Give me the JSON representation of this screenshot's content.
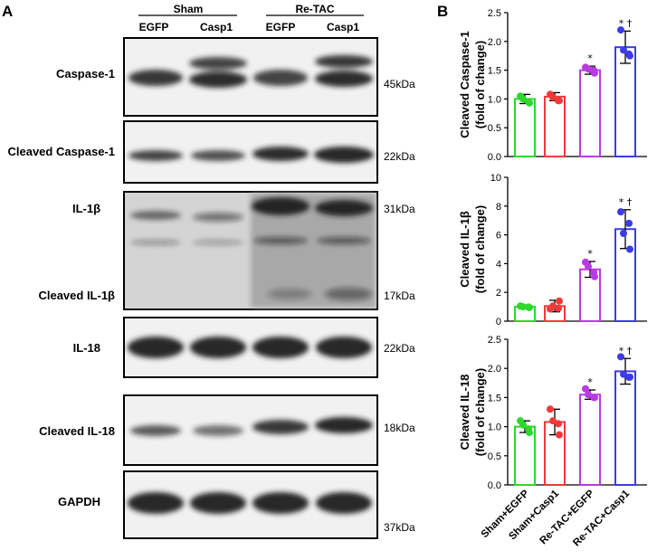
{
  "panel_a": {
    "letter": "A",
    "groups": [
      {
        "label": "Sham",
        "lanes": [
          "EGFP",
          "Casp1"
        ]
      },
      {
        "label": "Re-TAC",
        "lanes": [
          "EGFP",
          "Casp1"
        ]
      }
    ],
    "blots": [
      {
        "label": "Caspase-1",
        "sizes": [
          "45kDa"
        ]
      },
      {
        "label": "Cleaved Caspase-1",
        "sizes": [
          "22kDa"
        ]
      },
      {
        "label": "IL-1β",
        "second_label": "Cleaved IL-1β",
        "sizes": [
          "31kDa",
          "17kDa"
        ]
      },
      {
        "label": "IL-18",
        "sizes": [
          "22kDa"
        ]
      },
      {
        "label": "Cleaved IL-18",
        "sizes": [
          "18kDa"
        ]
      },
      {
        "label": "GAPDH",
        "sizes": [
          "37kDa"
        ]
      }
    ]
  },
  "panel_b": {
    "letter": "B"
  },
  "chart_data": [
    {
      "type": "bar",
      "categories": [
        "Sham+EGFP",
        "Sham+Casp1",
        "Re-TAC+EGFP",
        "Re-TAC+Casp1"
      ],
      "colors": [
        "#2bd92b",
        "#f03a3a",
        "#b93ae3",
        "#3b3ce8"
      ],
      "values": [
        1.0,
        1.04,
        1.5,
        1.9
      ],
      "errors": [
        0.08,
        0.07,
        0.07,
        0.28
      ],
      "points": [
        [
          1.05,
          0.93,
          1.0,
          0.95
        ],
        [
          1.08,
          0.97,
          1.03,
          0.97
        ],
        [
          1.55,
          1.45,
          1.52,
          1.5
        ],
        [
          2.2,
          1.75,
          1.85,
          1.78
        ]
      ],
      "sig": [
        "",
        "",
        "*",
        "* †"
      ],
      "ylabel": [
        "Cleaved Caspase-1",
        "(fold of change)"
      ],
      "ylim": [
        0,
        2.5
      ],
      "yticks": [
        "0.0",
        "0.5",
        "1.0",
        "1.5",
        "2.0",
        "2.5"
      ]
    },
    {
      "type": "bar",
      "categories": [
        "Sham+EGFP",
        "Sham+Casp1",
        "Re-TAC+EGFP",
        "Re-TAC+Casp1"
      ],
      "colors": [
        "#2bd92b",
        "#f03a3a",
        "#b93ae3",
        "#3b3ce8"
      ],
      "values": [
        1.0,
        1.05,
        3.6,
        6.4
      ],
      "errors": [
        0.1,
        0.4,
        0.55,
        1.35
      ],
      "points": [
        [
          1.05,
          0.95,
          1.0,
          0.98
        ],
        [
          0.85,
          1.4,
          1.05,
          0.9
        ],
        [
          4.1,
          3.1,
          3.8,
          3.4
        ],
        [
          7.6,
          5.0,
          6.1,
          6.8
        ]
      ],
      "sig": [
        "",
        "",
        "*",
        "* †"
      ],
      "ylabel": [
        "Cleaved IL-1β",
        "(fold of change)"
      ],
      "ylim": [
        0,
        10
      ],
      "yticks": [
        "0",
        "2",
        "4",
        "6",
        "8",
        "10"
      ]
    },
    {
      "type": "bar",
      "categories": [
        "Sham+EGFP",
        "Sham+Casp1",
        "Re-TAC+EGFP",
        "Re-TAC+Casp1"
      ],
      "colors": [
        "#2bd92b",
        "#f03a3a",
        "#b93ae3",
        "#3b3ce8"
      ],
      "values": [
        1.0,
        1.08,
        1.55,
        1.95
      ],
      "errors": [
        0.1,
        0.22,
        0.08,
        0.22
      ],
      "points": [
        [
          1.1,
          0.9,
          1.03,
          0.96
        ],
        [
          1.3,
          0.86,
          1.1,
          1.05
        ],
        [
          1.65,
          1.5,
          1.55,
          1.5
        ],
        [
          2.2,
          1.85,
          1.9,
          1.85
        ]
      ],
      "sig": [
        "",
        "",
        "*",
        "* †"
      ],
      "ylabel": [
        "Cleaved IL-18",
        "(fold of change)"
      ],
      "ylim": [
        0,
        2.5
      ],
      "yticks": [
        "0.0",
        "0.5",
        "1.0",
        "1.5",
        "2.0",
        "2.5"
      ]
    }
  ]
}
